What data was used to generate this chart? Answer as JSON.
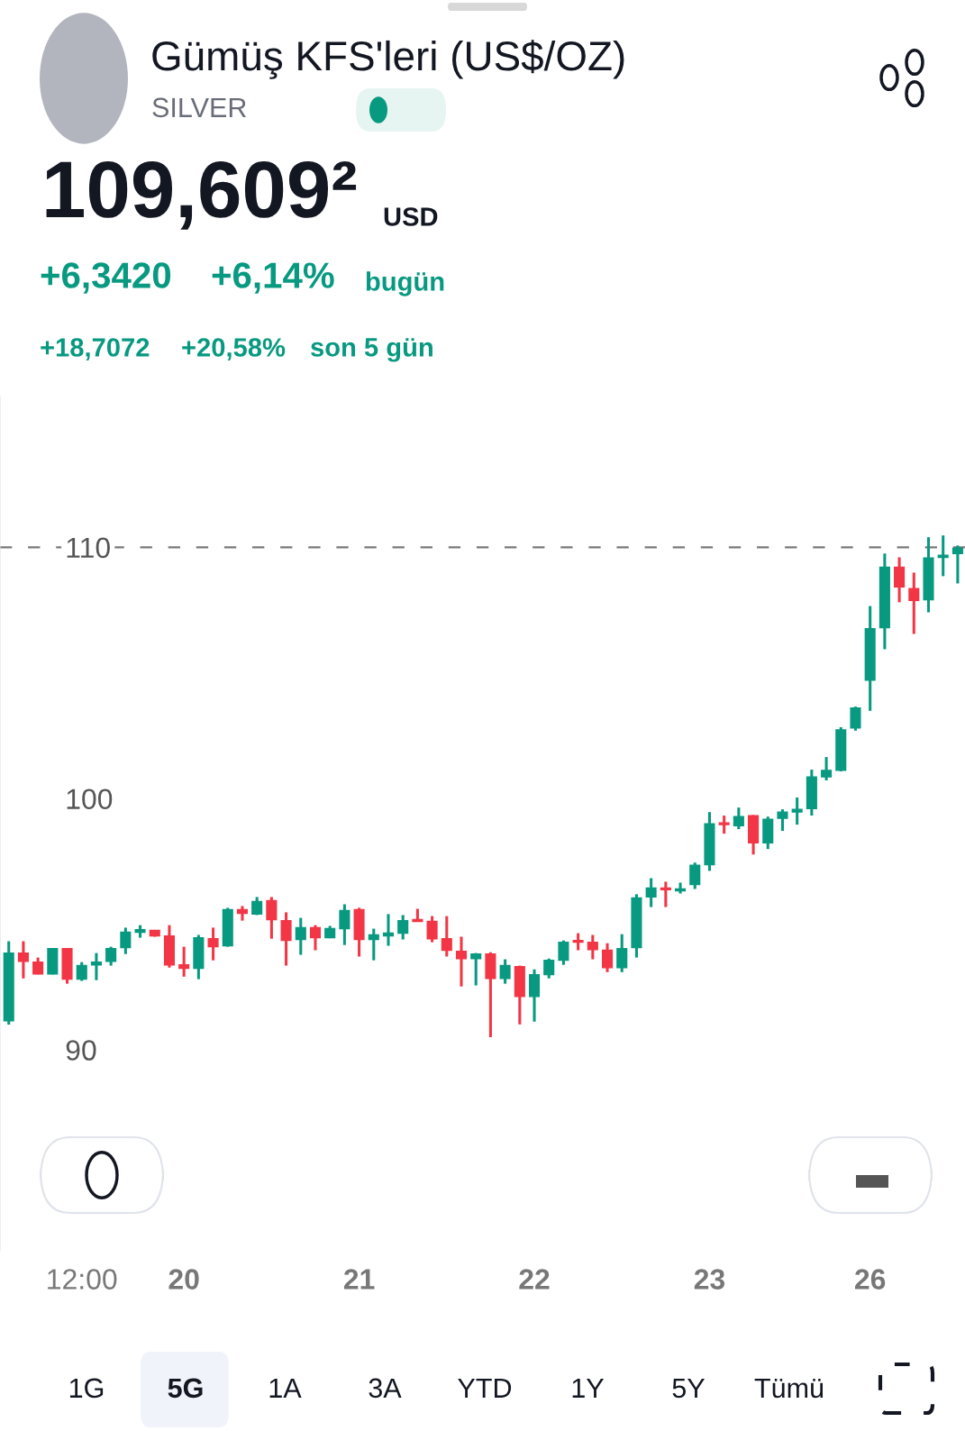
{
  "chart_data": {
    "type": "candlestick",
    "title": "Gümüş KFS'leri (US$/OZ)",
    "subtitle": "SILVER",
    "annotations": [
      "109,609²",
      "USD",
      "+6,3420",
      "+6,14%",
      "bugün",
      "+18,7072",
      "+20,58%",
      "son 5 gün",
      "1G",
      "5G",
      "1A",
      "3A",
      "YTD",
      "1Y",
      "5Y",
      "Tümü"
    ],
    "categories": [
      null,
      null,
      null,
      null,
      null,
      "12:00",
      null,
      null,
      null,
      null,
      null,
      null,
      "20",
      null,
      null,
      null,
      null,
      null,
      null,
      null,
      null,
      null,
      null,
      null,
      "21",
      null,
      null,
      null,
      null,
      null,
      null,
      null,
      null,
      null,
      null,
      null,
      "22",
      null,
      null,
      null,
      null,
      null,
      null,
      null,
      null,
      null,
      null,
      null,
      "23",
      null,
      null,
      null,
      null,
      null,
      null,
      null,
      null,
      null,
      null,
      "26",
      null,
      null,
      null,
      null,
      null,
      null
    ],
    "ohlc": [
      [
        91.15,
        94.32,
        91.0,
        93.85
      ],
      [
        93.85,
        94.32,
        92.84,
        93.52
      ],
      [
        93.49,
        93.67,
        93.0,
        93.02
      ],
      [
        93.02,
        94.05,
        93.0,
        94.03
      ],
      [
        94.03,
        94.05,
        92.63,
        92.81
      ],
      [
        92.81,
        93.49,
        92.74,
        93.35
      ],
      [
        93.38,
        93.85,
        92.77,
        93.49
      ],
      [
        93.52,
        94.1,
        93.35,
        94.03
      ],
      [
        94.07,
        94.86,
        93.81,
        94.68
      ],
      [
        94.68,
        94.96,
        94.46,
        94.78
      ],
      [
        94.75,
        94.77,
        94.5,
        94.53
      ],
      [
        94.53,
        94.96,
        93.27,
        93.38
      ],
      [
        93.38,
        94.1,
        92.91,
        93.24
      ],
      [
        93.24,
        94.57,
        92.81,
        94.46
      ],
      [
        94.42,
        94.86,
        93.56,
        94.1
      ],
      [
        94.14,
        95.65,
        94.1,
        95.58
      ],
      [
        95.58,
        95.72,
        95.14,
        95.43
      ],
      [
        95.4,
        96.08,
        95.36,
        95.9
      ],
      [
        95.94,
        96.08,
        94.42,
        95.18
      ],
      [
        95.14,
        95.47,
        93.35,
        94.35
      ],
      [
        94.39,
        95.25,
        93.78,
        94.86
      ],
      [
        94.86,
        94.96,
        93.96,
        94.46
      ],
      [
        94.46,
        94.93,
        94.44,
        94.82
      ],
      [
        94.82,
        95.79,
        94.17,
        95.54
      ],
      [
        95.58,
        95.65,
        93.71,
        94.39
      ],
      [
        94.39,
        94.82,
        93.56,
        94.57
      ],
      [
        94.53,
        95.4,
        94.14,
        94.64
      ],
      [
        94.64,
        95.36,
        94.39,
        95.14
      ],
      [
        95.18,
        95.61,
        95.11,
        95.11
      ],
      [
        95.11,
        95.32,
        94.28,
        94.42
      ],
      [
        94.42,
        95.32,
        93.71,
        93.96
      ],
      [
        93.92,
        94.5,
        92.52,
        93.63
      ],
      [
        93.63,
        93.85,
        92.56,
        93.81
      ],
      [
        93.81,
        93.88,
        90.5,
        92.84
      ],
      [
        92.84,
        93.6,
        92.63,
        93.35
      ],
      [
        93.31,
        93.35,
        91.01,
        92.12
      ],
      [
        92.12,
        93.2,
        91.12,
        92.99
      ],
      [
        92.99,
        93.63,
        92.84,
        93.56
      ],
      [
        93.56,
        94.35,
        93.38,
        94.28
      ],
      [
        94.35,
        94.64,
        93.96,
        94.28
      ],
      [
        94.28,
        94.57,
        93.6,
        93.99
      ],
      [
        93.96,
        94.24,
        93.09,
        93.27
      ],
      [
        93.27,
        94.6,
        93.09,
        94.03
      ],
      [
        94.07,
        96.19,
        93.67,
        96.04
      ],
      [
        96.08,
        96.83,
        95.68,
        96.44
      ],
      [
        96.44,
        96.69,
        95.68,
        96.37
      ],
      [
        96.33,
        96.65,
        96.22,
        96.4
      ],
      [
        96.58,
        97.45,
        96.4,
        97.34
      ],
      [
        97.37,
        99.46,
        97.12,
        98.99
      ],
      [
        99.03,
        99.32,
        98.6,
        98.96
      ],
      [
        98.92,
        99.64,
        98.78,
        99.28
      ],
      [
        99.32,
        99.34,
        97.77,
        98.24
      ],
      [
        98.24,
        99.28,
        97.99,
        99.17
      ],
      [
        99.21,
        99.57,
        98.71,
        99.46
      ],
      [
        99.46,
        100.04,
        98.96,
        99.57
      ],
      [
        99.6,
        101.15,
        99.32,
        100.86
      ],
      [
        100.86,
        101.65,
        100.72,
        101.12
      ],
      [
        101.12,
        102.84,
        101.08,
        102.73
      ],
      [
        102.81,
        103.66,
        102.7,
        103.6
      ],
      [
        104.71,
        107.66,
        103.49,
        106.76
      ],
      [
        106.8,
        109.75,
        105.94,
        109.21
      ],
      [
        109.21,
        109.6,
        107.81,
        108.42
      ],
      [
        108.35,
        108.99,
        106.55,
        107.88
      ],
      [
        107.91,
        110.4,
        107.41,
        109.57
      ],
      [
        109.6,
        110.47,
        108.85,
        109.68
      ],
      [
        109.75,
        110.07,
        108.56,
        109.96
      ]
    ],
    "colors": [
      "#089981",
      "#f23645",
      "#f23645",
      "#089981",
      "#f23645",
      "#089981",
      "#089981",
      "#089981",
      "#089981",
      "#089981",
      "#f23645",
      "#f23645",
      "#f23645",
      "#089981",
      "#f23645",
      "#089981",
      "#f23645",
      "#089981",
      "#f23645",
      "#f23645",
      "#089981",
      "#f23645",
      "#089981",
      "#089981",
      "#f23645",
      "#089981",
      "#089981",
      "#089981",
      "#f23645",
      "#f23645",
      "#f23645",
      "#f23645",
      "#089981",
      "#f23645",
      "#089981",
      "#f23645",
      "#089981",
      "#089981",
      "#089981",
      "#f23645",
      "#f23645",
      "#f23645",
      "#089981",
      "#089981",
      "#089981",
      "#f23645",
      "#089981",
      "#089981",
      "#089981",
      "#f23645",
      "#089981",
      "#f23645",
      "#089981",
      "#089981",
      "#089981",
      "#089981",
      "#089981",
      "#089981",
      "#089981",
      "#089981",
      "#089981",
      "#f23645",
      "#f23645",
      "#089981",
      "#089981",
      "#089981"
    ],
    "ylim": [
      82,
      116
    ],
    "yticks": [
      90,
      100,
      110
    ],
    "ref_lines": [
      {
        "axis": "y",
        "value": 110,
        "color": "#7a7a7a",
        "line_style": "dashed"
      }
    ],
    "grid": false,
    "legend": false
  }
}
